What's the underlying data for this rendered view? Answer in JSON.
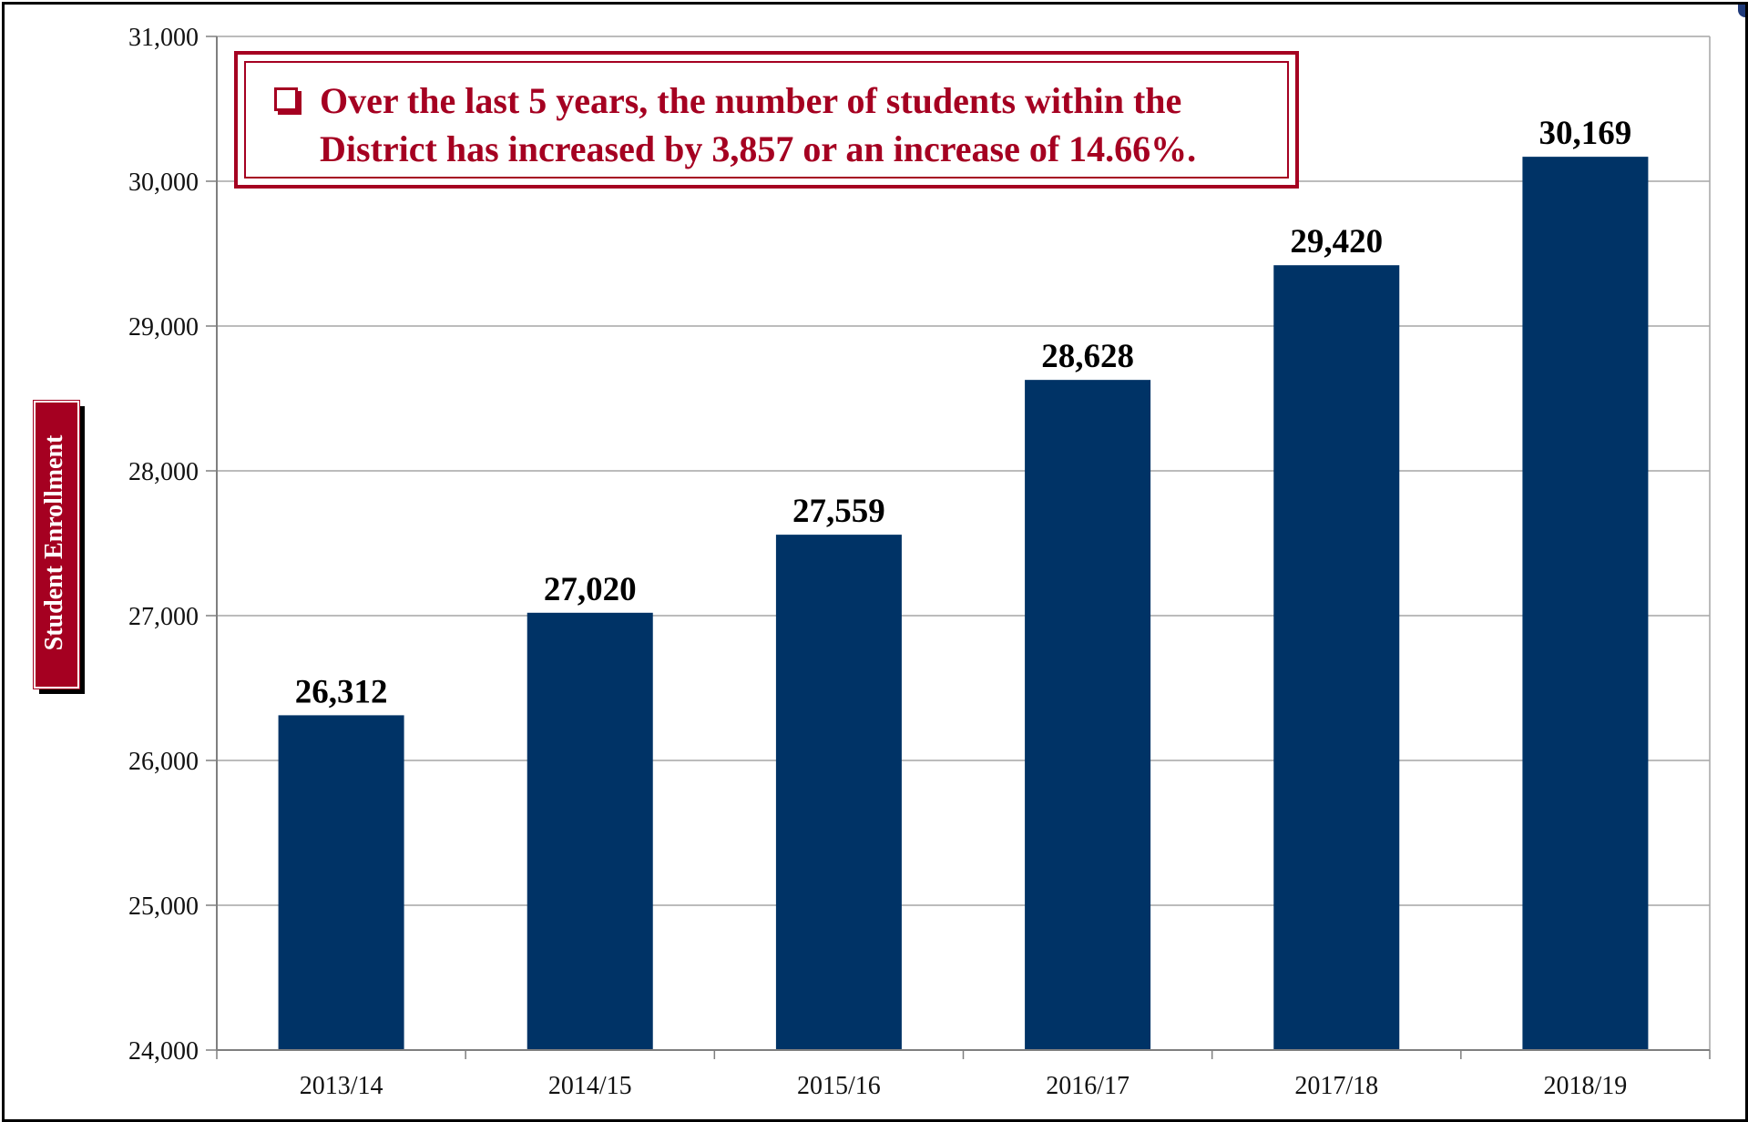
{
  "chart_data": {
    "type": "bar",
    "categories": [
      "2013/14",
      "2014/15",
      "2015/16",
      "2016/17",
      "2017/18",
      "2018/19"
    ],
    "values": [
      26312,
      27020,
      27559,
      28628,
      29420,
      30169
    ],
    "data_labels": [
      "26,312",
      "27,020",
      "27,559",
      "28,628",
      "29,420",
      "30,169"
    ],
    "title": "",
    "xlabel": "",
    "ylabel": "Student Enrollment",
    "ylim": [
      24000,
      31000
    ],
    "yticks": [
      24000,
      25000,
      26000,
      27000,
      28000,
      29000,
      30000,
      31000
    ],
    "ytick_labels": [
      "24,000",
      "25,000",
      "26,000",
      "27,000",
      "28,000",
      "29,000",
      "30,000",
      "31,000"
    ],
    "grid": "horizontal",
    "bar_color": "#003366",
    "legend": "none"
  },
  "callout": {
    "line1": "Over the last 5 years, the number of  students within the",
    "line2": "District has increased by 3,857 or an increase of  14.66%.",
    "color": "#a50021"
  },
  "ylabel_badge": {
    "text": "Student Enrollment",
    "background": "#a50021"
  }
}
